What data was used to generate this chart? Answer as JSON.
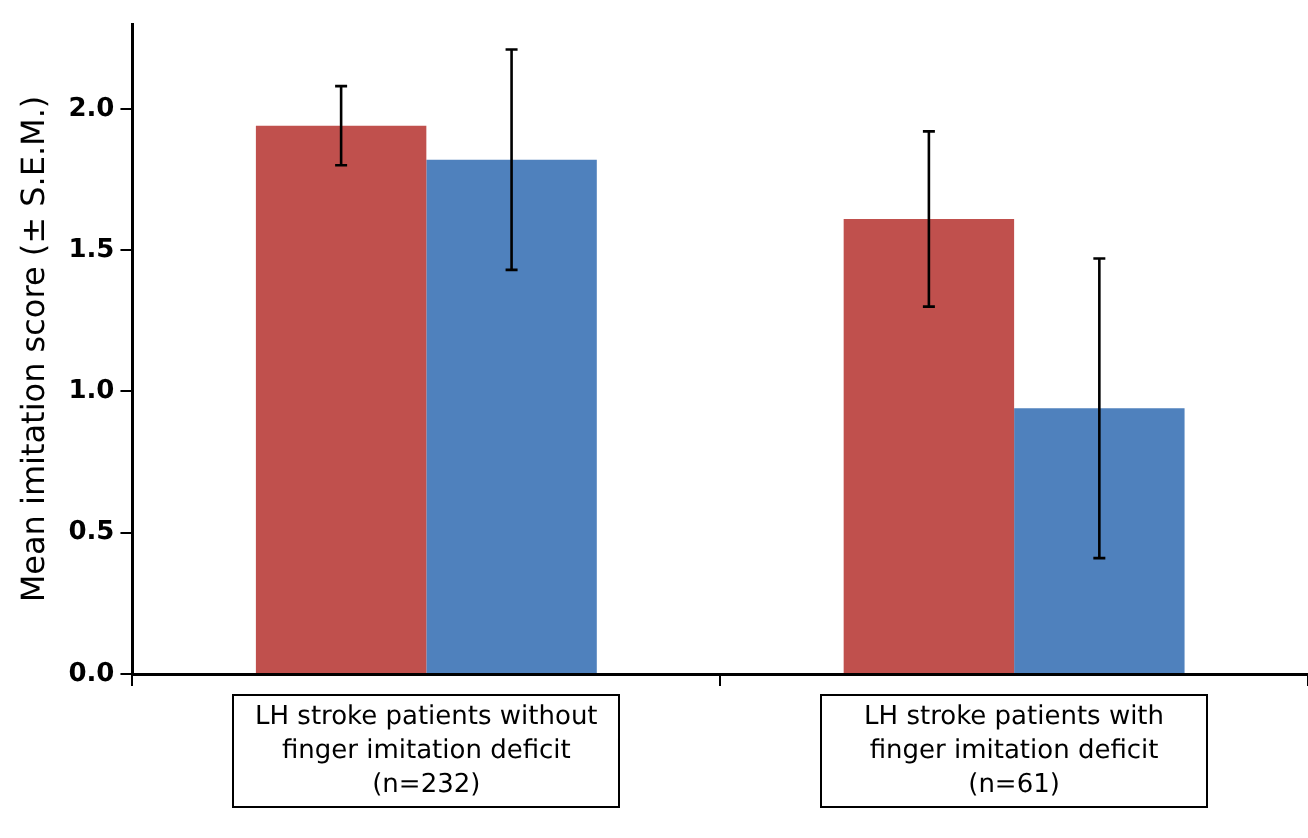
{
  "chart_data": {
    "type": "bar",
    "ylabel": "Mean imitation score (± S.E.M.)",
    "categories": [
      "LH stroke patients without finger imitation deficit (n=232)",
      "LH stroke patients with finger imitation deficit (n=61)"
    ],
    "series": [
      {
        "color": "#c0504d",
        "values": [
          1.94,
          1.61
        ],
        "errors": [
          0.14,
          0.31
        ]
      },
      {
        "color": "#4f81bd",
        "values": [
          1.82,
          0.94
        ],
        "errors": [
          0.39,
          0.53
        ]
      }
    ],
    "ylim": [
      0,
      2.3
    ],
    "yticks": [
      {
        "value": 0,
        "label": "0.0"
      },
      {
        "value": 0.5,
        "label": "0.5"
      },
      {
        "value": 1,
        "label": "1.0"
      },
      {
        "value": 1.5,
        "label": "1.5"
      },
      {
        "value": 2,
        "label": "2.0"
      }
    ],
    "grid": false,
    "legend": false
  }
}
